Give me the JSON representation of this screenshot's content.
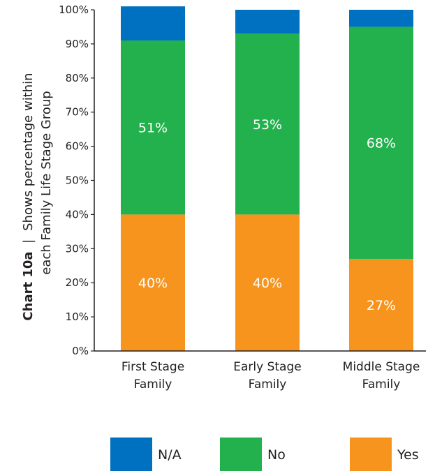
{
  "chart_data": {
    "type": "bar",
    "stacked": true,
    "title": "",
    "ylabel": {
      "bold": "Chart 10a",
      "separator": "|",
      "line1": "Shows percentage within",
      "line2": "each Family Life Stage Group"
    },
    "xlabel": "",
    "ylim": [
      0,
      100
    ],
    "yticks": [
      "0%",
      "10%",
      "20%",
      "30%",
      "40%",
      "50%",
      "60%",
      "70%",
      "80%",
      "90%",
      "100%"
    ],
    "categories": [
      [
        "First Stage",
        "Family"
      ],
      [
        "Early Stage",
        "Family"
      ],
      [
        "Middle Stage",
        "Family"
      ]
    ],
    "series": [
      {
        "name": "Yes",
        "color": "#f7941d",
        "values": [
          40,
          40,
          27
        ],
        "labels": [
          "40%",
          "40%",
          "27%"
        ]
      },
      {
        "name": "No",
        "color": "#22b14c",
        "values": [
          51,
          53,
          68
        ],
        "labels": [
          "51%",
          "53%",
          "68%"
        ]
      },
      {
        "name": "N/A",
        "color": "#0070c0",
        "values": [
          10,
          7,
          5
        ],
        "labels": [
          "",
          "",
          ""
        ]
      }
    ],
    "legend": {
      "position": "bottom",
      "order": [
        "N/A",
        "No",
        "Yes"
      ]
    },
    "grid": false
  }
}
